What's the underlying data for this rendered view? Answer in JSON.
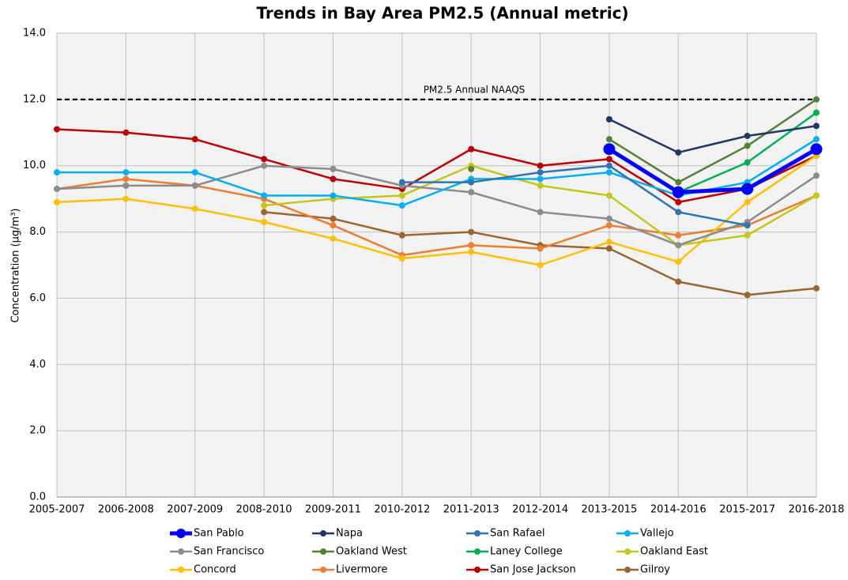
{
  "chart_data": {
    "type": "line",
    "title": "Trends in Bay Area PM2.5 (Annual metric)",
    "y_label": "Concentration (µg/m³)",
    "categories": [
      "2005-2007",
      "2006-2008",
      "2007-2009",
      "2008-2010",
      "2009-2011",
      "2010-2012",
      "2011-2013",
      "2012-2014",
      "2013-2015",
      "2014-2016",
      "2015-2017",
      "2016-2018"
    ],
    "ylim": [
      0,
      14
    ],
    "yticks": [
      {
        "value": 0,
        "label": "0.0"
      },
      {
        "value": 2,
        "label": "2.0"
      },
      {
        "value": 4,
        "label": "4.0"
      },
      {
        "value": 6,
        "label": "6.0"
      },
      {
        "value": 8,
        "label": "8.0"
      },
      {
        "value": 10,
        "label": "10.0"
      },
      {
        "value": 12,
        "label": "12.0"
      },
      {
        "value": 14,
        "label": "14.0"
      }
    ],
    "grid": true,
    "reference_line": {
      "value": 12,
      "label": "PM2.5 Annual NAAQS"
    },
    "series": [
      {
        "name": "San Pablo",
        "color": "#0000ff",
        "values": [
          null,
          null,
          null,
          null,
          null,
          null,
          null,
          null,
          10.5,
          9.2,
          9.3,
          10.5
        ]
      },
      {
        "name": "Napa",
        "color": "#1f3864",
        "values": [
          null,
          null,
          null,
          null,
          null,
          null,
          null,
          null,
          11.4,
          10.4,
          10.9,
          11.2
        ]
      },
      {
        "name": "San Rafael",
        "color": "#2e75b6",
        "values": [
          null,
          null,
          null,
          null,
          null,
          9.5,
          9.5,
          9.8,
          10.0,
          8.6,
          8.2,
          null
        ]
      },
      {
        "name": "Vallejo",
        "color": "#00b0f0",
        "values": [
          9.8,
          9.8,
          9.8,
          9.1,
          9.1,
          8.8,
          9.6,
          9.6,
          9.8,
          9.1,
          9.5,
          10.8
        ]
      },
      {
        "name": "San Francisco",
        "color": "#8c8c8c",
        "values": [
          9.3,
          9.4,
          9.4,
          10.0,
          9.9,
          9.4,
          9.2,
          8.6,
          8.4,
          7.6,
          8.3,
          9.7
        ]
      },
      {
        "name": "Oakland West",
        "color": "#548235",
        "values": [
          null,
          null,
          null,
          null,
          null,
          null,
          9.9,
          null,
          10.8,
          9.5,
          10.6,
          12.0
        ]
      },
      {
        "name": "Laney College",
        "color": "#00b050",
        "values": [
          null,
          null,
          null,
          null,
          null,
          null,
          null,
          null,
          null,
          9.2,
          10.1,
          11.6
        ]
      },
      {
        "name": "Oakland East",
        "color": "#c3c71a",
        "values": [
          null,
          null,
          null,
          8.8,
          9.0,
          9.1,
          10.0,
          9.4,
          9.1,
          7.6,
          7.9,
          9.1
        ]
      },
      {
        "name": "Concord",
        "color": "#ffc000",
        "values": [
          8.9,
          9.0,
          8.7,
          8.3,
          7.8,
          7.2,
          7.4,
          7.0,
          7.7,
          7.1,
          8.9,
          10.3
        ]
      },
      {
        "name": "Livermore",
        "color": "#ed7d31",
        "values": [
          9.3,
          9.6,
          9.4,
          9.0,
          8.2,
          7.3,
          7.6,
          7.5,
          8.2,
          7.9,
          8.2,
          9.1
        ]
      },
      {
        "name": "San Jose Jackson",
        "color": "#c00000",
        "values": [
          11.1,
          11.0,
          10.8,
          10.2,
          9.6,
          9.3,
          10.5,
          10.0,
          10.2,
          8.9,
          9.3,
          10.3
        ]
      },
      {
        "name": "Gilroy",
        "color": "#9c6530",
        "values": [
          null,
          null,
          null,
          8.6,
          8.4,
          7.9,
          8.0,
          7.6,
          7.5,
          6.5,
          6.1,
          6.3
        ]
      }
    ]
  }
}
